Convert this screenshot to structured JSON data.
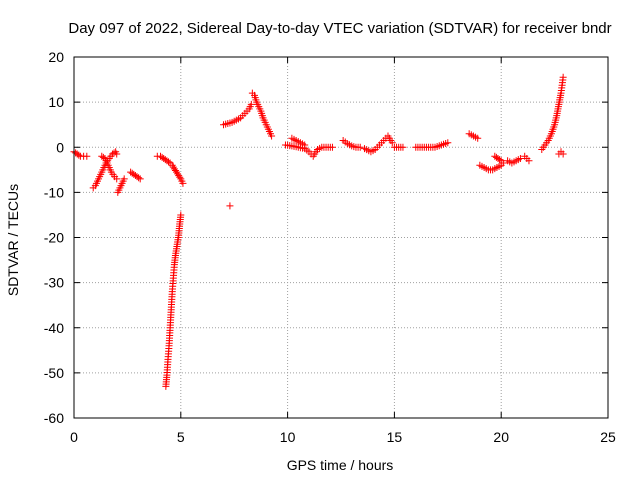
{
  "chart_data": {
    "type": "scatter",
    "title": "Day 097 of 2022, Sidereal Day-to-day VTEC variation (SDTVAR) for receiver bndr",
    "xlabel": "GPS time / hours",
    "ylabel": "SDTVAR / TECUs",
    "xlim": [
      0,
      25
    ],
    "ylim": [
      -60,
      20
    ],
    "xticks": [
      0,
      5,
      10,
      15,
      20,
      25
    ],
    "yticks": [
      -60,
      -50,
      -40,
      -30,
      -20,
      -10,
      0,
      10,
      20
    ],
    "xtick_labels": [
      "0",
      "5",
      "10",
      "15",
      "20",
      "25"
    ],
    "ytick_labels": [
      "-60",
      "-50",
      "-40",
      "-30",
      "-20",
      "-10",
      "0",
      "10",
      "20"
    ],
    "grid": true,
    "marker": "+",
    "color": "#ff0000",
    "segments": [
      {
        "x": [
          0.0,
          0.15,
          0.3,
          0.45,
          0.6
        ],
        "y": [
          -1.0,
          -1.5,
          -2.0,
          -2.0,
          -2.0
        ]
      },
      {
        "x": [
          0.9,
          1.0,
          1.1,
          1.2,
          1.35,
          1.5,
          1.65,
          1.8,
          1.95,
          2.0
        ],
        "y": [
          -9.0,
          -8.5,
          -7.5,
          -6.5,
          -5.0,
          -3.5,
          -2.5,
          -1.5,
          -1.0,
          -1.5
        ]
      },
      {
        "x": [
          1.3,
          1.45,
          1.6,
          1.75,
          1.9,
          2.0
        ],
        "y": [
          -2.0,
          -2.5,
          -4.0,
          -5.5,
          -6.5,
          -7.0
        ]
      },
      {
        "x": [
          2.05,
          2.15,
          2.25,
          2.35
        ],
        "y": [
          -10.0,
          -9.0,
          -8.0,
          -7.0
        ]
      },
      {
        "x": [
          2.65,
          2.8,
          2.95,
          3.1
        ],
        "y": [
          -5.5,
          -6.0,
          -6.5,
          -7.0
        ]
      },
      {
        "x": [
          3.9,
          4.05,
          4.2,
          4.35,
          4.5,
          4.6,
          4.7,
          4.8,
          4.9,
          5.0,
          5.1
        ],
        "y": [
          -2.0,
          -2.0,
          -2.5,
          -3.0,
          -3.5,
          -4.0,
          -4.8,
          -5.5,
          -6.3,
          -7.0,
          -8.0
        ]
      },
      {
        "x": [
          4.3,
          4.35,
          4.4,
          4.45,
          4.5,
          4.55,
          4.6,
          4.65,
          4.7,
          4.75,
          4.8,
          4.85,
          4.9,
          4.95,
          5.0
        ],
        "y": [
          -53.0,
          -50.5,
          -47.0,
          -44.0,
          -40.0,
          -36.0,
          -32.0,
          -29.0,
          -26.0,
          -24.0,
          -22.5,
          -21.0,
          -19.5,
          -17.0,
          -15.0
        ]
      },
      {
        "x": [
          7.0,
          7.4,
          7.8,
          8.0,
          8.2,
          8.3
        ],
        "y": [
          5.0,
          5.5,
          6.5,
          7.5,
          8.5,
          9.5
        ]
      },
      {
        "x": [
          7.3
        ],
        "y": [
          -13.0
        ]
      },
      {
        "x": [
          8.35,
          8.45,
          8.55,
          8.65,
          8.75,
          8.85,
          8.95,
          9.05,
          9.15,
          9.25
        ],
        "y": [
          12.0,
          11.5,
          10.0,
          9.0,
          8.0,
          6.5,
          5.5,
          4.5,
          3.5,
          2.5
        ]
      },
      {
        "x": [
          9.9,
          10.2,
          10.5,
          10.8,
          11.0,
          11.2,
          11.4,
          11.6,
          11.8,
          12.1
        ],
        "y": [
          0.5,
          0.3,
          0.0,
          -0.3,
          -1.0,
          -2.0,
          -0.5,
          0.0,
          0.0,
          0.0
        ]
      },
      {
        "x": [
          10.2,
          10.4,
          10.6,
          10.8
        ],
        "y": [
          2.0,
          1.5,
          1.0,
          0.5
        ]
      },
      {
        "x": [
          12.6,
          12.8,
          13.0,
          13.2,
          13.4
        ],
        "y": [
          1.5,
          0.8,
          0.3,
          0.0,
          0.0
        ]
      },
      {
        "x": [
          13.6,
          13.9,
          14.1,
          14.3,
          14.5,
          14.7,
          14.9
        ],
        "y": [
          -0.3,
          -1.0,
          -0.5,
          0.5,
          1.5,
          2.5,
          1.0
        ]
      },
      {
        "x": [
          15.0,
          15.2,
          15.4
        ],
        "y": [
          0.0,
          0.0,
          0.0
        ]
      },
      {
        "x": [
          16.0,
          16.3,
          16.6,
          16.9,
          17.2,
          17.5
        ],
        "y": [
          0.0,
          0.0,
          0.0,
          0.0,
          0.5,
          1.0
        ]
      },
      {
        "x": [
          18.5,
          18.7,
          18.9
        ],
        "y": [
          3.0,
          2.5,
          2.0
        ]
      },
      {
        "x": [
          19.0,
          19.2,
          19.4,
          19.6,
          19.8,
          20.0,
          20.1
        ],
        "y": [
          -4.0,
          -4.5,
          -5.0,
          -5.0,
          -4.5,
          -4.0,
          -3.5
        ]
      },
      {
        "x": [
          19.7,
          19.85,
          20.0
        ],
        "y": [
          -2.0,
          -2.5,
          -3.0
        ]
      },
      {
        "x": [
          20.3,
          20.5,
          20.7,
          20.9
        ],
        "y": [
          -3.0,
          -3.5,
          -3.0,
          -2.5
        ]
      },
      {
        "x": [
          21.1,
          21.2,
          21.3
        ],
        "y": [
          -2.0,
          -2.5,
          -3.0
        ]
      },
      {
        "x": [
          21.9,
          22.05,
          22.2,
          22.35,
          22.5,
          22.6,
          22.7,
          22.8,
          22.9
        ],
        "y": [
          -0.5,
          0.5,
          1.5,
          3.0,
          5.0,
          7.0,
          9.5,
          12.0,
          15.5
        ]
      },
      {
        "x": [
          22.7,
          22.8,
          22.9
        ],
        "y": [
          -1.5,
          -1.0,
          -1.5
        ]
      }
    ]
  }
}
